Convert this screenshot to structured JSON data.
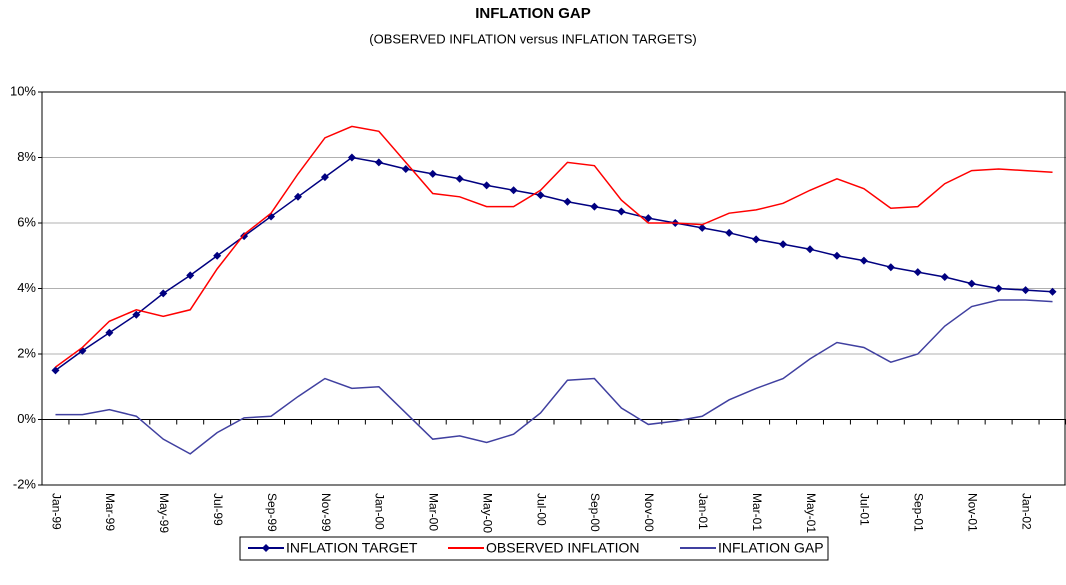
{
  "chart_data": {
    "type": "line",
    "title": "INFLATION GAP",
    "subtitle": "(OBSERVED INFLATION versus INFLATION TARGETS)",
    "categories": [
      "Jan-99",
      null,
      "Mar-99",
      null,
      "May-99",
      null,
      "Jul-99",
      null,
      "Sep-99",
      null,
      "Nov-99",
      null,
      "Jan-00",
      null,
      "Mar-00",
      null,
      "May-00",
      null,
      "Jul-00",
      null,
      "Sep-00",
      null,
      "Nov-00",
      null,
      "Jan-01",
      null,
      "Mar-01",
      null,
      "May-01",
      null,
      "Jul-01",
      null,
      "Sep-01",
      null,
      "Nov-01",
      null,
      "Jan-02",
      null
    ],
    "series": [
      {
        "name": "INFLATION TARGET",
        "color": "#000080",
        "marker": "diamond",
        "values": [
          1.5,
          2.1,
          2.65,
          3.2,
          3.85,
          4.4,
          5.0,
          5.6,
          6.2,
          6.8,
          7.4,
          8.0,
          7.85,
          7.65,
          7.5,
          7.35,
          7.15,
          7.0,
          6.85,
          6.65,
          6.5,
          6.35,
          6.15,
          6.0,
          5.85,
          5.7,
          5.5,
          5.35,
          5.2,
          5.0,
          4.85,
          4.65,
          4.5,
          4.35,
          4.15,
          4.0,
          3.95,
          3.9
        ]
      },
      {
        "name": "OBSERVED INFLATION",
        "color": "#ff0000",
        "values": [
          1.6,
          2.2,
          3.0,
          3.35,
          3.15,
          3.35,
          4.6,
          5.65,
          6.3,
          7.5,
          8.6,
          8.95,
          8.8,
          7.85,
          6.9,
          6.8,
          6.5,
          6.5,
          7.0,
          7.85,
          7.75,
          6.7,
          6.0,
          6.0,
          5.95,
          6.3,
          6.4,
          6.6,
          7.0,
          7.35,
          7.05,
          6.45,
          6.5,
          7.2,
          7.6,
          7.65,
          7.6,
          7.55
        ]
      },
      {
        "name": "INFLATION GAP",
        "color": "#4040a0",
        "values": [
          0.15,
          0.15,
          0.3,
          0.1,
          -0.6,
          -1.05,
          -0.4,
          0.05,
          0.1,
          0.7,
          1.25,
          0.95,
          1.0,
          0.2,
          -0.6,
          -0.5,
          -0.7,
          -0.45,
          0.2,
          1.2,
          1.25,
          0.35,
          -0.15,
          -0.05,
          0.1,
          0.6,
          0.95,
          1.25,
          1.85,
          2.35,
          2.2,
          1.75,
          2.0,
          2.85,
          3.45,
          3.65,
          3.65,
          3.6
        ]
      }
    ],
    "ylim": [
      -2,
      10
    ],
    "yticks": [
      {
        "value": -2,
        "label": "-2%"
      },
      {
        "value": 0,
        "label": "0%"
      },
      {
        "value": 2,
        "label": "2%"
      },
      {
        "value": 4,
        "label": "4%"
      },
      {
        "value": 6,
        "label": "6%"
      },
      {
        "value": 8,
        "label": "8%"
      },
      {
        "value": 10,
        "label": "10%"
      }
    ],
    "grid": true,
    "legend": "bottom"
  }
}
